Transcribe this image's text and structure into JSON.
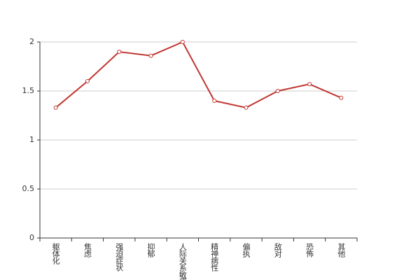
{
  "chart_data": {
    "type": "line",
    "categories": [
      "躯体化",
      "焦虑",
      "强迫症状",
      "抑郁",
      "人际关系敏感",
      "精神病性",
      "偏执",
      "敌对",
      "恐怖",
      "其他"
    ],
    "values": [
      1.33,
      1.6,
      1.9,
      1.86,
      2,
      1.4,
      1.33,
      1.5,
      1.57,
      1.43
    ],
    "color": "#c23531",
    "ylim": [
      0,
      2
    ],
    "yticks": [
      0,
      0.5,
      1,
      1.5,
      2
    ],
    "grid": true
  }
}
